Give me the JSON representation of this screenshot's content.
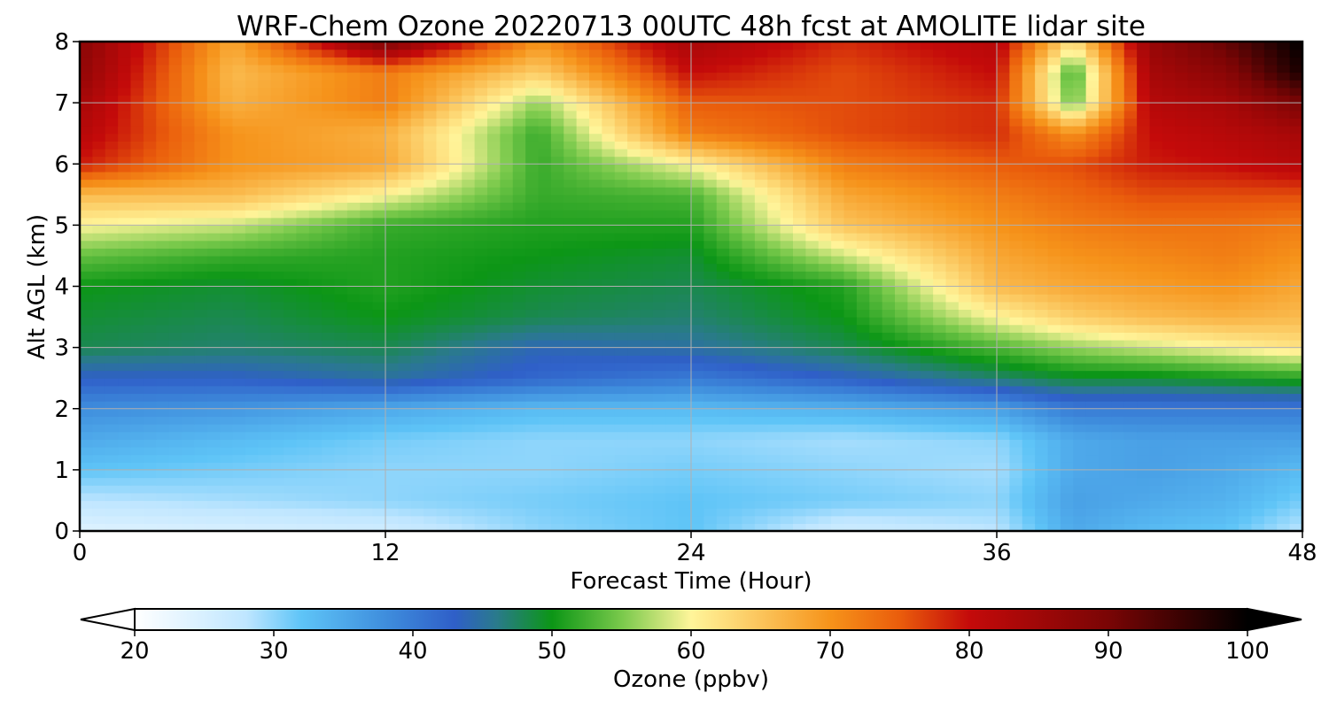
{
  "chart_data": {
    "type": "heatmap",
    "title": "WRF-Chem Ozone  20220713 00UTC 48h fcst at AMOLITE lidar site",
    "xlabel": "Forecast Time (Hour)",
    "ylabel": "Alt AGL (km)",
    "xlim": [
      0,
      48
    ],
    "ylim": [
      0,
      8
    ],
    "x_ticks": [
      "0",
      "12",
      "24",
      "36",
      "48"
    ],
    "y_ticks": [
      "0",
      "1",
      "2",
      "3",
      "4",
      "5",
      "6",
      "7",
      "8"
    ],
    "grid": true,
    "x": [
      0,
      6,
      12,
      18,
      24,
      30,
      36,
      39,
      42,
      45,
      48
    ],
    "y": [
      0,
      0.5,
      1,
      1.5,
      2,
      2.5,
      3,
      3.5,
      4,
      4.5,
      5,
      5.5,
      6,
      6.5,
      7,
      7.5,
      8
    ],
    "z": [
      [
        24,
        25,
        26,
        30,
        32,
        26,
        28,
        35,
        33,
        32,
        28
      ],
      [
        28,
        29,
        30,
        31,
        32,
        31,
        30,
        36,
        35,
        34,
        31
      ],
      [
        32,
        31,
        30,
        30,
        31,
        30,
        29,
        35,
        36,
        35,
        33
      ],
      [
        35,
        33,
        31,
        30,
        30,
        29,
        30,
        35,
        36,
        36,
        36
      ],
      [
        38,
        37,
        35,
        33,
        33,
        34,
        36,
        40,
        40,
        40,
        40
      ],
      [
        43,
        43,
        45,
        42,
        40,
        43,
        47,
        49,
        49,
        50,
        51
      ],
      [
        48,
        47,
        48,
        44,
        45,
        48,
        53,
        56,
        58,
        60,
        62
      ],
      [
        49,
        48,
        50,
        48,
        47,
        50,
        60,
        64,
        66,
        67,
        66
      ],
      [
        50,
        49,
        51,
        49,
        48,
        51,
        66,
        68,
        69,
        70,
        68
      ],
      [
        54,
        52,
        51,
        50,
        49,
        58,
        68,
        70,
        71,
        72,
        70
      ],
      [
        60,
        58,
        52,
        51,
        51,
        65,
        70,
        72,
        73,
        73,
        72
      ],
      [
        66,
        66,
        60,
        52,
        53,
        68,
        72,
        74,
        76,
        76,
        76
      ],
      [
        79,
        70,
        68,
        52,
        60,
        72,
        75,
        76,
        79,
        80,
        82
      ],
      [
        82,
        70,
        67,
        52,
        72,
        76,
        78,
        70,
        80,
        82,
        84
      ],
      [
        84,
        67,
        72,
        56,
        75,
        76,
        78,
        54,
        82,
        84,
        90
      ],
      [
        87,
        66,
        72,
        64,
        80,
        76,
        80,
        52,
        84,
        88,
        98
      ],
      [
        88,
        68,
        90,
        70,
        84,
        78,
        82,
        62,
        86,
        92,
        100
      ]
    ],
    "colorbar": {
      "label": "Ozone  (ppbv)",
      "min": 20,
      "max": 100,
      "extend": "both",
      "ticks": [
        "20",
        "30",
        "40",
        "50",
        "60",
        "70",
        "80",
        "90",
        "100"
      ],
      "stops": [
        {
          "v": 20,
          "c": "#ffffff"
        },
        {
          "v": 28,
          "c": "#bfe6ff"
        },
        {
          "v": 32,
          "c": "#5ec4f7"
        },
        {
          "v": 38,
          "c": "#3f8edd"
        },
        {
          "v": 43,
          "c": "#2f5fc8"
        },
        {
          "v": 46,
          "c": "#2a7a8c"
        },
        {
          "v": 50,
          "c": "#0c9616"
        },
        {
          "v": 55,
          "c": "#79c94b"
        },
        {
          "v": 60,
          "c": "#fff59a"
        },
        {
          "v": 63,
          "c": "#fdd875"
        },
        {
          "v": 70,
          "c": "#f6931a"
        },
        {
          "v": 75,
          "c": "#ea5d0c"
        },
        {
          "v": 80,
          "c": "#c40a0a"
        },
        {
          "v": 90,
          "c": "#7a0505"
        },
        {
          "v": 100,
          "c": "#000000"
        }
      ]
    }
  }
}
